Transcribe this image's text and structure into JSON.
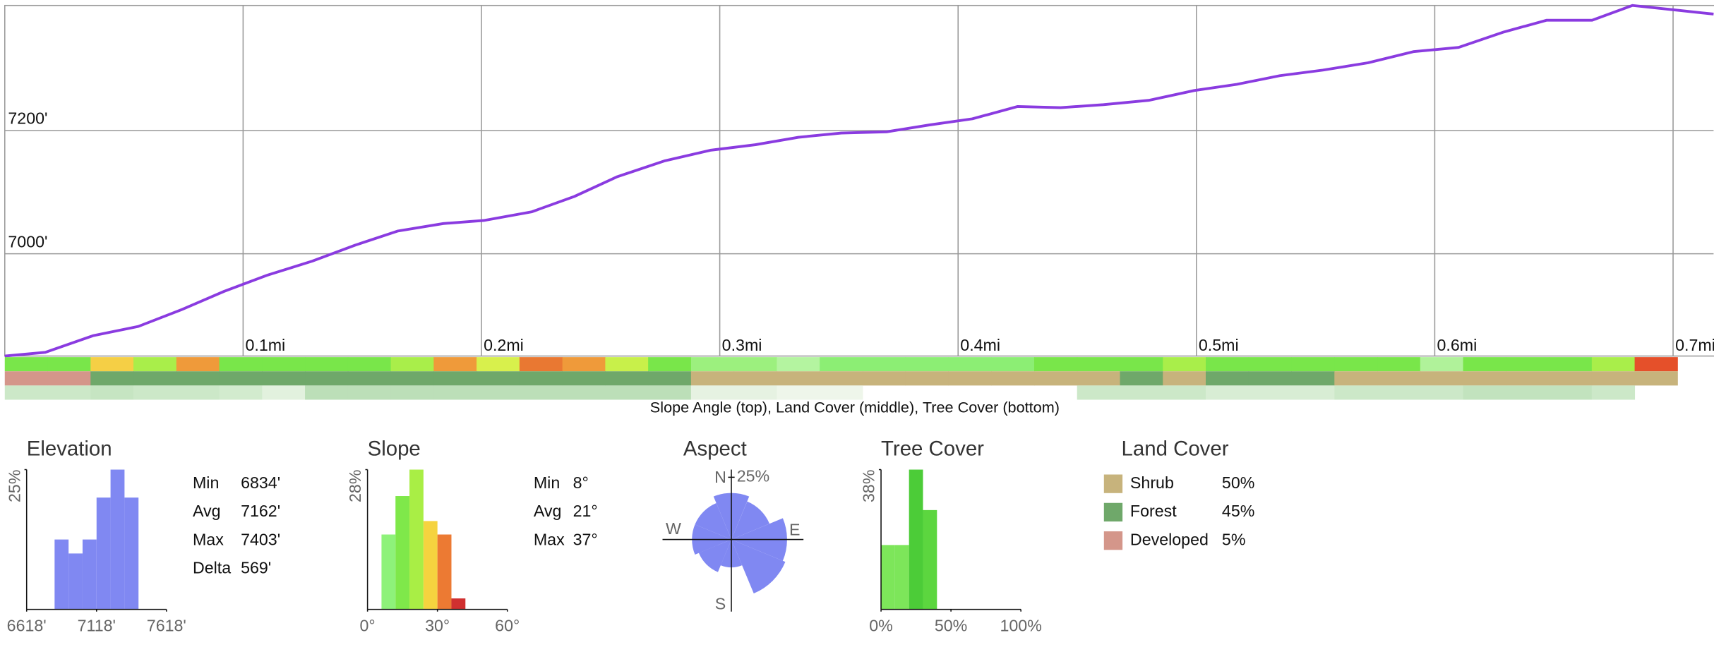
{
  "chart_data": [
    {
      "type": "line",
      "color": "#8a3be0",
      "x": [
        0,
        0.017,
        0.037,
        0.056,
        0.074,
        0.092,
        0.11,
        0.129,
        0.147,
        0.165,
        0.184,
        0.201,
        0.221,
        0.239,
        0.257,
        0.277,
        0.296,
        0.315,
        0.333,
        0.351,
        0.37,
        0.388,
        0.406,
        0.425,
        0.443,
        0.461,
        0.48,
        0.499,
        0.517,
        0.535,
        0.553,
        0.572,
        0.591,
        0.61,
        0.629,
        0.647,
        0.666,
        0.683,
        0.7,
        0.717
      ],
      "values": [
        6834,
        6840,
        6867,
        6882,
        6909,
        6939,
        6965,
        6988,
        7014,
        7037,
        7049,
        7054,
        7068,
        7093,
        7125,
        7151,
        7168,
        7177,
        7189,
        7196,
        7198,
        7209,
        7219,
        7239,
        7237,
        7242,
        7249,
        7265,
        7275,
        7289,
        7298,
        7310,
        7328,
        7335,
        7360,
        7379,
        7379,
        7403,
        7396,
        7389
      ],
      "xlim": [
        0,
        0.717
      ],
      "ylim": [
        6834,
        7403
      ],
      "xticks": [
        {
          "value": 0.1,
          "label": "0.1mi"
        },
        {
          "value": 0.2,
          "label": "0.2mi"
        },
        {
          "value": 0.3,
          "label": "0.3mi"
        },
        {
          "value": 0.4,
          "label": "0.4mi"
        },
        {
          "value": 0.5,
          "label": "0.5mi"
        },
        {
          "value": 0.6,
          "label": "0.6mi"
        },
        {
          "value": 0.7,
          "label": "0.7mi"
        }
      ],
      "yticks": [
        {
          "value": 7000,
          "label": "7000'"
        },
        {
          "value": 7200,
          "label": "7200'"
        }
      ],
      "grid": true
    },
    {
      "type": "strip",
      "caption": "Slope Angle (top), Land Cover (middle), Tree Cover (bottom)",
      "rows": [
        {
          "colors": [
            "#79e64a",
            "#79e64a",
            "#f5cf45",
            "#a9ee4a",
            "#ef9a3a",
            "#79e64a",
            "#79e64a",
            "#79e64a",
            "#79e64a",
            "#a9ee4a",
            "#ef9a3a",
            "#d8f04c",
            "#e97832",
            "#ef9a3a",
            "#c8f04a",
            "#79e64a",
            "#9cf07e",
            "#9cf07e",
            "#b4f4a0",
            "#8cee74",
            "#8cee74",
            "#8cee74",
            "#8cee74",
            "#8cee74",
            "#79e64a",
            "#79e64a",
            "#79e64a",
            "#a9ee4a",
            "#79e64a",
            "#79e64a",
            "#79e64a",
            "#79e64a",
            "#79e64a",
            "#b0f29a",
            "#79e64a",
            "#79e64a",
            "#79e64a",
            "#a9ee4a",
            "#e5502a"
          ]
        },
        {
          "colors": [
            "#d4968a",
            "#d4968a",
            "#6fa86a",
            "#6fa86a",
            "#6fa86a",
            "#6fa86a",
            "#6fa86a",
            "#6fa86a",
            "#6fa86a",
            "#6fa86a",
            "#6fa86a",
            "#6fa86a",
            "#6fa86a",
            "#6fa86a",
            "#6fa86a",
            "#6fa86a",
            "#c7b37c",
            "#c7b37c",
            "#c7b37c",
            "#c7b37c",
            "#c7b37c",
            "#c7b37c",
            "#c7b37c",
            "#c7b37c",
            "#c7b37c",
            "#c7b37c",
            "#6fa86a",
            "#c7b37c",
            "#6fa86a",
            "#6fa86a",
            "#6fa86a",
            "#c7b37c",
            "#c7b37c",
            "#c7b37c",
            "#c7b37c",
            "#c7b37c",
            "#c7b37c",
            "#c7b37c",
            "#c7b37c"
          ]
        },
        {
          "colors": [
            "#cce8c8",
            "#cce8c8",
            "#c6e5c2",
            "#cce8c8",
            "#cce8c8",
            "#d2ebce",
            "#e2f1de",
            "#bcdfb8",
            "#bcdfb8",
            "#bcdfb8",
            "#bcdfb8",
            "#bcdfb8",
            "#bcdfb8",
            "#bcdfb8",
            "#bcdfb8",
            "#bcdfb8",
            "#e6f2e2",
            "#e6f2e2",
            "#eef6ea",
            "#eef6ea",
            null,
            null,
            null,
            null,
            null,
            "#cce8c8",
            "#cce8c8",
            "#cce8c8",
            "#d8edd4",
            "#d8edd4",
            "#d8edd4",
            "#cce8c8",
            "#cce8c8",
            "#cce8c8",
            "#c2e3be",
            "#c2e3be",
            "#c2e3be",
            "#cce8c8",
            null
          ]
        }
      ]
    },
    {
      "type": "histogram",
      "title": "Elevation",
      "color": "#8088f2",
      "bins": [
        6818,
        6918,
        7018,
        7118,
        7218,
        7318,
        7418
      ],
      "counts": [
        12.5,
        10,
        12.5,
        20,
        25,
        20
      ],
      "xlim": [
        6618,
        7618
      ],
      "xticks": [
        {
          "value": 6618,
          "label": "6618'"
        },
        {
          "value": 7118,
          "label": "7118'"
        },
        {
          "value": 7618,
          "label": "7618'"
        }
      ],
      "ylim": [
        0,
        25
      ],
      "yticks": [
        {
          "value": 25,
          "label": "25%"
        }
      ],
      "stats": [
        {
          "label": "Min",
          "value": "6834'"
        },
        {
          "label": "Avg",
          "value": "7162'"
        },
        {
          "label": "Max",
          "value": "7403'"
        },
        {
          "label": "Delta",
          "value": "569'"
        }
      ]
    },
    {
      "type": "histogram",
      "title": "Slope",
      "colors": [
        "#8ef27a",
        "#7fe84a",
        "#a9ee45",
        "#f5d33f",
        "#ec7a33",
        "#d03030"
      ],
      "bins": [
        6,
        12,
        18,
        24,
        30,
        36,
        42
      ],
      "counts": [
        15,
        22.7,
        28,
        17.7,
        15,
        2.2
      ],
      "xlim": [
        0,
        60
      ],
      "xticks": [
        {
          "value": 0,
          "label": "0°"
        },
        {
          "value": 30,
          "label": "30°"
        },
        {
          "value": 60,
          "label": "60°"
        }
      ],
      "ylim": [
        0,
        28
      ],
      "yticks": [
        {
          "value": 28,
          "label": "28%"
        }
      ],
      "stats": [
        {
          "label": "Min",
          "value": "8°"
        },
        {
          "label": "Avg",
          "value": "21°"
        },
        {
          "label": "Max",
          "value": "37°"
        }
      ]
    },
    {
      "type": "polar",
      "title": "Aspect",
      "color": "#8088f2",
      "categories": [
        "N",
        null,
        "E",
        null,
        "S",
        null,
        "W",
        null
      ],
      "values": [
        14,
        11,
        20,
        22,
        5,
        8,
        10,
        10
      ],
      "rlim": [
        0,
        25
      ],
      "rticks": [
        {
          "value": 25,
          "label": "25%"
        }
      ]
    },
    {
      "type": "histogram",
      "title": "Tree Cover",
      "colors": [
        "#7de65a",
        "#7de65a",
        "#4ccc38",
        "#5cd63f"
      ],
      "bins": [
        0,
        10,
        20,
        30,
        40
      ],
      "counts": [
        17.5,
        17.5,
        38,
        27
      ],
      "xlim": [
        0,
        100
      ],
      "xticks": [
        {
          "value": 0,
          "label": "0%"
        },
        {
          "value": 50,
          "label": "50%"
        },
        {
          "value": 100,
          "label": "100%"
        }
      ],
      "ylim": [
        0,
        38
      ],
      "yticks": [
        {
          "value": 38,
          "label": "38%"
        }
      ]
    },
    {
      "type": "table",
      "title": "Land Cover",
      "categories": [
        "Shrub",
        "Forest",
        "Developed"
      ],
      "values": [
        50,
        45,
        5
      ],
      "value_labels": [
        "50%",
        "45%",
        "5%"
      ],
      "colors": [
        "#c7b37c",
        "#6fa86a",
        "#d4968a"
      ]
    }
  ]
}
